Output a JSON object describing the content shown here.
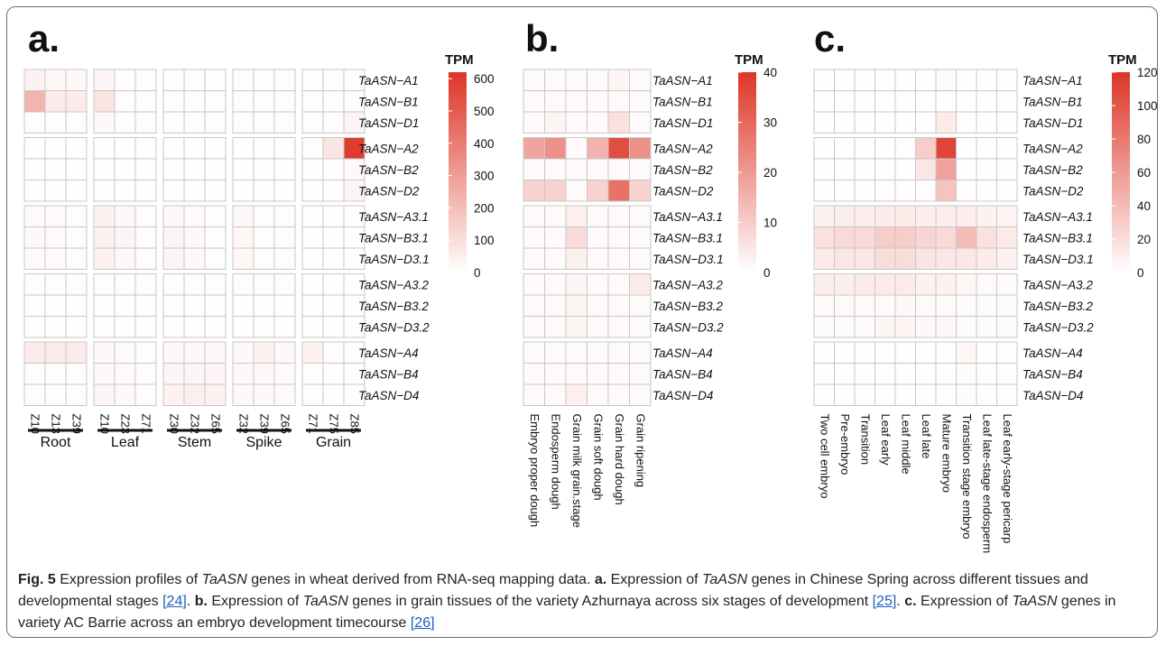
{
  "figure": {
    "caption": {
      "fig_label": "Fig. 5",
      "p1": " Expression profiles of ",
      "gene": "TaASN",
      "p2": " genes in wheat derived from RNA-seq mapping data. ",
      "a_label": "a.",
      "a1": " Expression of ",
      "a2": " genes in Chinese Spring across different tissues and developmental stages ",
      "ref_a": "[24]",
      "sep": ". ",
      "b_label": "b.",
      "b1": " Expression of ",
      "b2": " genes in grain tissues of the variety Azhurnaya across six stages of development ",
      "ref_b": "[25]",
      "c_label": "c.",
      "c1": " Expression of ",
      "c2": " genes in variety AC Barrie across an embryo development timecourse ",
      "ref_c": "[26]"
    },
    "colors": {
      "low": "#ffffff",
      "high": "#dc3527",
      "grid": "#c8c8c8"
    }
  },
  "chart_data": [
    {
      "type": "heatmap",
      "panel_label": "a.",
      "legend_title": "TPM",
      "legend_ticks": [
        "600",
        "500",
        "400",
        "300",
        "200",
        "100",
        "0"
      ],
      "legend_max": 620,
      "rows": [
        "TaASN−A1",
        "TaASN−B1",
        "TaASN−D1",
        "TaASN−A2",
        "TaASN−B2",
        "TaASN−D2",
        "TaASN−A3.1",
        "TaASN−B3.1",
        "TaASN−D3.1",
        "TaASN−A3.2",
        "TaASN−B3.2",
        "TaASN−D3.2",
        "TaASN−A4",
        "TaASN−B4",
        "TaASN−D4"
      ],
      "columns": [
        "Z10",
        "Z13",
        "Z39",
        "Z10",
        "Z23",
        "Z71",
        "Z30",
        "Z32",
        "Z65",
        "Z32",
        "Z39",
        "Z65",
        "Z71",
        "Z75",
        "Z85"
      ],
      "column_groups": [
        {
          "name": "Root",
          "size": 3
        },
        {
          "name": "Leaf",
          "size": 3
        },
        {
          "name": "Stem",
          "size": 3
        },
        {
          "name": "Spike",
          "size": 3
        },
        {
          "name": "Grain",
          "size": 3
        }
      ],
      "values": [
        [
          40,
          20,
          20,
          30,
          10,
          10,
          10,
          10,
          10,
          10,
          10,
          10,
          10,
          10,
          10
        ],
        [
          230,
          60,
          60,
          80,
          10,
          10,
          10,
          10,
          10,
          10,
          10,
          10,
          10,
          10,
          10
        ],
        [
          10,
          10,
          10,
          20,
          10,
          10,
          10,
          10,
          10,
          10,
          10,
          10,
          10,
          10,
          30
        ],
        [
          5,
          5,
          5,
          5,
          5,
          5,
          5,
          5,
          5,
          5,
          5,
          5,
          10,
          80,
          600
        ],
        [
          5,
          5,
          5,
          5,
          5,
          5,
          5,
          5,
          5,
          5,
          5,
          5,
          5,
          5,
          20
        ],
        [
          5,
          5,
          5,
          5,
          5,
          5,
          5,
          5,
          5,
          5,
          5,
          5,
          5,
          5,
          30
        ],
        [
          15,
          15,
          10,
          40,
          20,
          10,
          20,
          15,
          10,
          20,
          10,
          10,
          5,
          5,
          5
        ],
        [
          20,
          15,
          10,
          40,
          30,
          10,
          30,
          20,
          10,
          25,
          10,
          10,
          5,
          5,
          5
        ],
        [
          15,
          15,
          10,
          40,
          20,
          10,
          30,
          20,
          10,
          25,
          10,
          10,
          5,
          5,
          5
        ],
        [
          10,
          10,
          10,
          10,
          10,
          10,
          10,
          10,
          10,
          10,
          10,
          10,
          5,
          5,
          5
        ],
        [
          5,
          5,
          5,
          5,
          5,
          5,
          5,
          5,
          5,
          5,
          5,
          5,
          5,
          5,
          5
        ],
        [
          5,
          5,
          5,
          5,
          5,
          5,
          5,
          5,
          5,
          5,
          5,
          5,
          5,
          5,
          5
        ],
        [
          60,
          60,
          60,
          20,
          15,
          10,
          20,
          20,
          20,
          20,
          40,
          20,
          40,
          10,
          10
        ],
        [
          10,
          10,
          10,
          20,
          15,
          10,
          30,
          30,
          30,
          20,
          20,
          15,
          10,
          5,
          5
        ],
        [
          10,
          10,
          10,
          30,
          20,
          10,
          40,
          50,
          40,
          20,
          20,
          15,
          10,
          5,
          5
        ]
      ]
    },
    {
      "type": "heatmap",
      "panel_label": "b.",
      "legend_title": "TPM",
      "legend_ticks": [
        "40",
        "30",
        "20",
        "10",
        "0"
      ],
      "legend_max": 40,
      "rows": [
        "TaASN−A1",
        "TaASN−B1",
        "TaASN−D1",
        "TaASN−A2",
        "TaASN−B2",
        "TaASN−D2",
        "TaASN−A3.1",
        "TaASN−B3.1",
        "TaASN−D3.1",
        "TaASN−A3.2",
        "TaASN−B3.2",
        "TaASN−D3.2",
        "TaASN−A4",
        "TaASN−B4",
        "TaASN−D4"
      ],
      "columns": [
        "Embryo proper dough",
        "Endosperm dough",
        "Grain milk grain.stage",
        "Grain soft dough",
        "Grain hard dough",
        "Grain ripening"
      ],
      "values": [
        [
          1,
          1,
          1,
          1,
          2,
          1
        ],
        [
          1,
          1,
          1,
          1,
          1,
          1
        ],
        [
          1,
          2,
          1,
          1,
          6,
          1
        ],
        [
          18,
          22,
          1,
          15,
          35,
          22
        ],
        [
          1,
          1,
          1,
          1,
          1,
          1
        ],
        [
          9,
          9,
          1,
          9,
          28,
          9
        ],
        [
          1,
          1,
          3,
          1,
          1,
          1
        ],
        [
          1,
          1,
          7,
          1,
          1,
          1
        ],
        [
          1,
          1,
          3,
          1,
          1,
          1
        ],
        [
          1,
          1,
          2,
          1,
          1,
          4
        ],
        [
          1,
          1,
          2,
          1,
          1,
          1
        ],
        [
          1,
          1,
          2,
          1,
          1,
          1
        ],
        [
          1,
          1,
          1,
          1,
          1,
          1
        ],
        [
          1,
          1,
          1,
          1,
          1,
          1
        ],
        [
          1,
          1,
          3,
          1,
          1,
          1
        ]
      ]
    },
    {
      "type": "heatmap",
      "panel_label": "c.",
      "legend_title": "TPM",
      "legend_ticks": [
        "120",
        "100",
        "80",
        "60",
        "40",
        "20",
        "0"
      ],
      "legend_max": 120,
      "rows": [
        "TaASN−A1",
        "TaASN−B1",
        "TaASN−D1",
        "TaASN−A2",
        "TaASN−B2",
        "TaASN−D2",
        "TaASN−A3.1",
        "TaASN−B3.1",
        "TaASN−D3.1",
        "TaASN−A3.2",
        "TaASN−B3.2",
        "TaASN−D3.2",
        "TaASN−A4",
        "TaASN−B4",
        "TaASN−D4"
      ],
      "columns": [
        "Two cell embryo",
        "Pre-embryo",
        "Transition",
        "Leaf early",
        "Leaf middle",
        "Leaf late",
        "Mature embryo",
        "Transition stage embryo",
        "Leaf late-stage endosperm",
        "Leaf early-stage pericarp"
      ],
      "values": [
        [
          1,
          1,
          1,
          1,
          1,
          1,
          3,
          1,
          1,
          1
        ],
        [
          1,
          1,
          1,
          1,
          1,
          1,
          1,
          1,
          1,
          1
        ],
        [
          1,
          1,
          1,
          1,
          1,
          1,
          12,
          1,
          1,
          1
        ],
        [
          1,
          1,
          1,
          1,
          1,
          30,
          110,
          1,
          1,
          1
        ],
        [
          1,
          1,
          1,
          1,
          1,
          15,
          55,
          1,
          1,
          1
        ],
        [
          1,
          1,
          1,
          1,
          1,
          1,
          35,
          1,
          1,
          1
        ],
        [
          8,
          10,
          10,
          12,
          12,
          10,
          10,
          10,
          8,
          6
        ],
        [
          18,
          22,
          22,
          30,
          30,
          25,
          22,
          40,
          18,
          12
        ],
        [
          12,
          15,
          15,
          20,
          20,
          16,
          15,
          14,
          12,
          8
        ],
        [
          10,
          10,
          12,
          12,
          12,
          8,
          8,
          5,
          3,
          3
        ],
        [
          3,
          3,
          3,
          3,
          4,
          3,
          3,
          2,
          2,
          2
        ],
        [
          2,
          2,
          2,
          6,
          6,
          4,
          4,
          2,
          2,
          2
        ],
        [
          1,
          1,
          1,
          1,
          1,
          1,
          1,
          5,
          1,
          1
        ],
        [
          1,
          1,
          1,
          1,
          1,
          1,
          1,
          2,
          1,
          1
        ],
        [
          1,
          1,
          1,
          1,
          1,
          1,
          1,
          2,
          1,
          1
        ]
      ]
    }
  ]
}
